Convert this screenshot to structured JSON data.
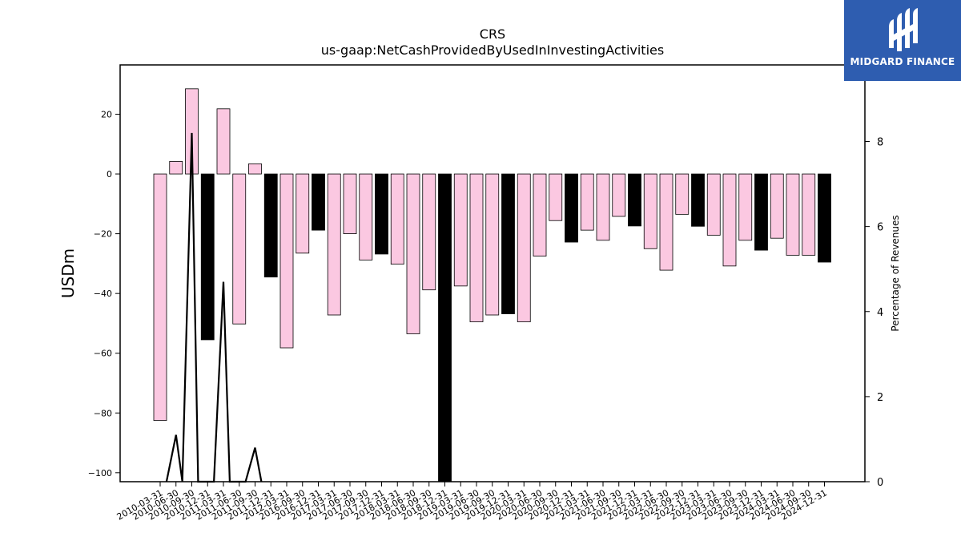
{
  "brand": {
    "logo_text": "MIDGARD FINANCE",
    "color": "#2e5db0"
  },
  "chart_data": {
    "type": "bar",
    "title": "CRS",
    "subtitle": "us-gaap:NetCashProvidedByUsedInInvestingActivities",
    "ylabel": "USDm",
    "y2label": "Percentage of Revenues",
    "ylim": [
      -103,
      36.5
    ],
    "y2lim": [
      0,
      9.8
    ],
    "yticks": [
      20,
      0,
      -20,
      -40,
      -60,
      -80,
      -100
    ],
    "y2ticks": [
      0,
      2,
      4,
      6,
      8
    ],
    "categories": [
      "2010-03-31",
      "2010-06-30",
      "2010-09-30",
      "2010-12-31",
      "2011-03-31",
      "2011-06-30",
      "2011-09-30",
      "2011-12-31",
      "2012-03-31",
      "2016-09-30",
      "2016-12-31",
      "2017-03-31",
      "2017-06-30",
      "2017-09-30",
      "2017-12-31",
      "2018-03-31",
      "2018-06-30",
      "2018-09-30",
      "2018-12-31",
      "2019-03-31",
      "2019-06-30",
      "2019-09-30",
      "2019-12-31",
      "2020-03-31",
      "2020-06-30",
      "2020-09-30",
      "2020-12-31",
      "2021-03-31",
      "2021-06-30",
      "2021-09-30",
      "2021-12-31",
      "2022-03-31",
      "2022-06-30",
      "2022-09-30",
      "2022-12-31",
      "2023-03-31",
      "2023-06-30",
      "2023-09-30",
      "2023-12-31",
      "2024-03-31",
      "2024-06-30",
      "2024-09-30",
      "2024-12-31"
    ],
    "values": [
      -82.5,
      4.2,
      28.5,
      -55.5,
      21.8,
      -50.2,
      3.4,
      -34.5,
      -58.2,
      -26.5,
      -18.8,
      -47.2,
      -20,
      -28.8,
      -26.8,
      -30.2,
      -53.5,
      -38.8,
      -103,
      -37.5,
      -49.5,
      -47.2,
      -46.8,
      -49.5,
      -27.5,
      -15.6,
      -22.8,
      -18.8,
      -22.2,
      -14.2,
      -17.4,
      -25,
      -32.2,
      -13.5,
      -17.5,
      -20.5,
      -30.8,
      -22.2,
      -25.5,
      -21.5,
      -27.2,
      -27.2,
      -29.5
    ],
    "highlight_color": "#000000",
    "bar_color": "#fbc8e1",
    "highlighted": [
      3,
      7,
      10,
      14,
      18,
      22,
      26,
      30,
      34,
      38,
      42
    ],
    "line_values": [
      null,
      1.1,
      8.2,
      null,
      4.7,
      null,
      0.8,
      null,
      null,
      null,
      null,
      null,
      null,
      null,
      null,
      null,
      null,
      null,
      null,
      null,
      null,
      null,
      null,
      null,
      null,
      null,
      null,
      null,
      null,
      null,
      null,
      null,
      null,
      null,
      null,
      null,
      null,
      null,
      null,
      null,
      null,
      null,
      null
    ],
    "line_color": "#000000",
    "grid": false,
    "legend": "none"
  }
}
